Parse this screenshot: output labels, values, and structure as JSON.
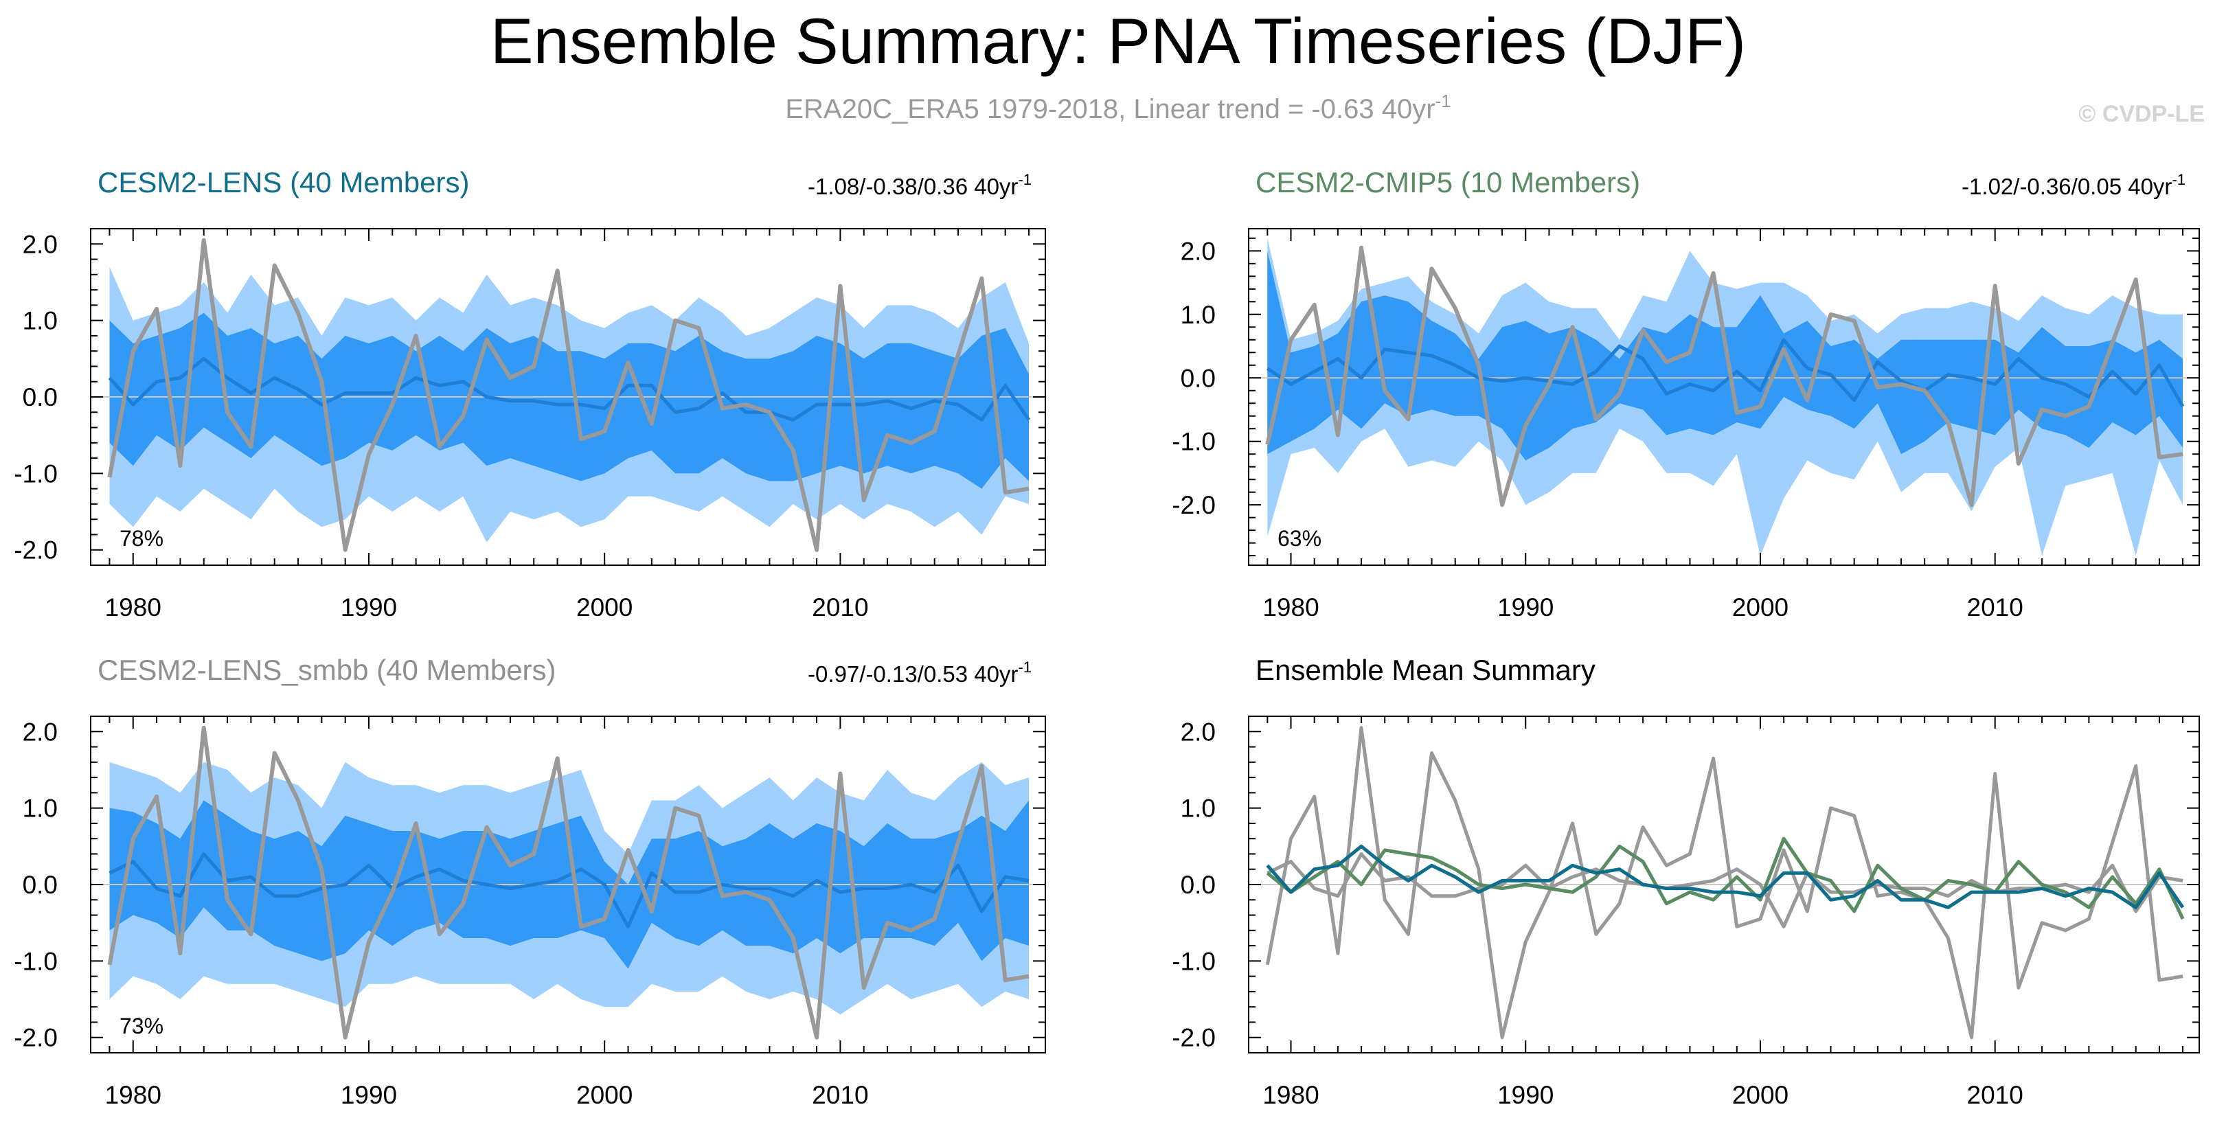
{
  "header": {
    "title": "Ensemble Summary: PNA Timeseries (DJF)",
    "subtitle": "ERA20C_ERA5 1979-2018, Linear trend = -0.63 40yr",
    "subtitle_sup": "-1",
    "watermark": "© CVDP-LE"
  },
  "colors": {
    "band_outer": "#9fd0ff",
    "band_inner": "#3399f6",
    "ens_mean_line": "#1f7fd6",
    "obs_line": "#999999",
    "lens_title": "#0f6e8c",
    "cmip5_title": "#5a8c63",
    "smbb_title": "#8f8f8f",
    "summary_title": "#000000",
    "zero_line": "#c8c8c8"
  },
  "chart_data": [
    {
      "type": "area",
      "title": "CESM2-LENS (40 Members)",
      "trend_text": "-1.08/-0.38/0.36 40yr",
      "trend_sup": "-1",
      "percent": "78%",
      "ylim": [
        -2.2,
        2.2
      ],
      "yticks": [
        "2.0",
        "1.0",
        "0.0",
        "-1.0",
        "-2.0"
      ],
      "xticks": [
        "1980",
        "1990",
        "2000",
        "2010"
      ],
      "x": [
        1979,
        1980,
        1981,
        1982,
        1983,
        1984,
        1985,
        1986,
        1987,
        1988,
        1989,
        1990,
        1991,
        1992,
        1993,
        1994,
        1995,
        1996,
        1997,
        1998,
        1999,
        2000,
        2001,
        2002,
        2003,
        2004,
        2005,
        2006,
        2007,
        2008,
        2009,
        2010,
        2011,
        2012,
        2013,
        2014,
        2015,
        2016,
        2017,
        2018
      ],
      "band_outer_upper": [
        1.7,
        1.0,
        1.1,
        1.2,
        1.5,
        1.1,
        1.6,
        1.2,
        1.3,
        0.8,
        1.3,
        1.2,
        1.3,
        1.0,
        1.3,
        1.1,
        1.6,
        1.2,
        1.3,
        1.2,
        1.0,
        0.9,
        1.1,
        1.2,
        1.0,
        1.3,
        1.1,
        0.8,
        0.9,
        1.1,
        1.3,
        1.2,
        0.9,
        1.2,
        1.2,
        1.1,
        0.9,
        1.3,
        1.5,
        0.7
      ],
      "band_inner_upper": [
        1.0,
        0.7,
        0.8,
        0.9,
        1.1,
        0.8,
        0.9,
        0.7,
        0.8,
        0.5,
        0.8,
        0.7,
        0.8,
        0.6,
        0.8,
        0.6,
        0.9,
        0.7,
        0.8,
        0.6,
        0.6,
        0.5,
        0.7,
        0.7,
        0.6,
        0.8,
        0.6,
        0.5,
        0.5,
        0.6,
        0.8,
        0.7,
        0.5,
        0.7,
        0.7,
        0.6,
        0.5,
        0.8,
        0.9,
        0.3
      ],
      "ens_mean": [
        0.25,
        -0.1,
        0.2,
        0.25,
        0.5,
        0.25,
        0.05,
        0.25,
        0.1,
        -0.1,
        0.05,
        0.05,
        0.05,
        0.25,
        0.15,
        0.2,
        0.0,
        -0.05,
        -0.05,
        -0.1,
        -0.1,
        -0.15,
        0.15,
        0.15,
        -0.2,
        -0.15,
        0.05,
        -0.2,
        -0.2,
        -0.3,
        -0.1,
        -0.1,
        -0.1,
        -0.05,
        -0.15,
        -0.05,
        -0.1,
        -0.3,
        0.15,
        -0.3
      ],
      "band_inner_lower": [
        -0.6,
        -0.9,
        -0.5,
        -0.7,
        -0.4,
        -0.6,
        -0.8,
        -0.5,
        -0.7,
        -0.9,
        -0.8,
        -0.6,
        -0.7,
        -0.5,
        -0.7,
        -0.6,
        -0.9,
        -0.8,
        -0.9,
        -1.0,
        -1.1,
        -1.0,
        -0.8,
        -0.7,
        -1.0,
        -1.0,
        -0.8,
        -1.0,
        -1.1,
        -1.1,
        -1.0,
        -0.9,
        -1.0,
        -0.9,
        -1.0,
        -0.9,
        -1.0,
        -1.2,
        -0.8,
        -1.1
      ],
      "band_outer_lower": [
        -1.4,
        -1.7,
        -1.3,
        -1.5,
        -1.2,
        -1.4,
        -1.6,
        -1.2,
        -1.5,
        -1.7,
        -1.6,
        -1.3,
        -1.5,
        -1.3,
        -1.5,
        -1.3,
        -1.9,
        -1.5,
        -1.6,
        -1.5,
        -1.7,
        -1.6,
        -1.3,
        -1.3,
        -1.4,
        -1.5,
        -1.3,
        -1.5,
        -1.7,
        -1.4,
        -1.6,
        -1.4,
        -1.6,
        -1.4,
        -1.5,
        -1.7,
        -1.5,
        -1.8,
        -1.3,
        -1.4
      ],
      "obs": [
        -1.05,
        0.6,
        1.15,
        -0.9,
        2.05,
        -0.2,
        -0.65,
        1.72,
        1.1,
        0.2,
        -2.0,
        -0.75,
        -0.1,
        0.8,
        -0.65,
        -0.25,
        0.75,
        0.25,
        0.4,
        1.65,
        -0.55,
        -0.45,
        0.45,
        -0.35,
        1.0,
        0.9,
        -0.15,
        -0.1,
        -0.2,
        -0.7,
        -2.0,
        1.45,
        -1.35,
        -0.5,
        -0.6,
        -0.45,
        0.55,
        1.55,
        -1.25,
        -1.2
      ],
      "obs_name": "ERA20C_ERA5",
      "ens_name": "CESM2-LENS"
    },
    {
      "type": "area",
      "title": "CESM2-CMIP5 (10 Members)",
      "trend_text": "-1.02/-0.36/0.05 40yr",
      "trend_sup": "-1",
      "percent": "63%",
      "ylim": [
        -2.95,
        2.35
      ],
      "yticks": [
        "2.0",
        "1.0",
        "0.0",
        "-1.0",
        "-2.0"
      ],
      "xticks": [
        "1980",
        "1990",
        "2000",
        "2010"
      ],
      "x": [
        1979,
        1980,
        1981,
        1982,
        1983,
        1984,
        1985,
        1986,
        1987,
        1988,
        1989,
        1990,
        1991,
        1992,
        1993,
        1994,
        1995,
        1996,
        1997,
        1998,
        1999,
        2000,
        2001,
        2002,
        2003,
        2004,
        2005,
        2006,
        2007,
        2008,
        2009,
        2010,
        2011,
        2012,
        2013,
        2014,
        2015,
        2016,
        2017,
        2018
      ],
      "band_outer_upper": [
        2.2,
        0.6,
        0.7,
        0.9,
        1.4,
        1.5,
        1.6,
        1.2,
        1.0,
        0.7,
        1.3,
        1.5,
        1.2,
        1.1,
        1.1,
        0.6,
        1.3,
        1.2,
        2.0,
        1.5,
        1.4,
        1.5,
        1.5,
        1.3,
        0.9,
        1.0,
        0.7,
        1.0,
        1.1,
        1.1,
        1.2,
        1.1,
        0.9,
        1.3,
        1.1,
        1.0,
        1.3,
        1.1,
        1.0,
        1.0
      ],
      "band_inner_upper": [
        2.0,
        0.4,
        0.5,
        0.7,
        1.2,
        1.3,
        1.2,
        0.9,
        0.7,
        0.3,
        0.8,
        0.9,
        0.7,
        0.8,
        0.6,
        0.3,
        0.8,
        0.7,
        1.0,
        0.8,
        0.8,
        1.3,
        0.7,
        0.9,
        0.5,
        0.6,
        0.3,
        0.6,
        0.6,
        0.6,
        0.6,
        0.6,
        0.4,
        0.8,
        0.5,
        0.5,
        0.6,
        0.4,
        0.6,
        0.3
      ],
      "ens_mean": [
        0.15,
        -0.1,
        0.1,
        0.3,
        0.0,
        0.45,
        0.4,
        0.35,
        0.2,
        0.0,
        -0.05,
        0.0,
        -0.05,
        -0.1,
        0.1,
        0.5,
        0.3,
        -0.25,
        -0.1,
        -0.2,
        0.1,
        -0.2,
        0.6,
        0.15,
        0.05,
        -0.35,
        0.25,
        -0.05,
        -0.2,
        0.05,
        0.0,
        -0.1,
        0.3,
        0.0,
        -0.1,
        -0.3,
        0.1,
        -0.25,
        0.2,
        -0.45
      ],
      "band_inner_lower": [
        -1.2,
        -1.0,
        -0.8,
        -0.5,
        -0.8,
        -0.4,
        -0.6,
        -0.5,
        -0.6,
        -0.6,
        -0.8,
        -1.3,
        -1.1,
        -0.8,
        -0.7,
        -0.4,
        -0.5,
        -0.9,
        -0.8,
        -0.9,
        -0.7,
        -0.8,
        -0.3,
        -0.5,
        -0.6,
        -0.8,
        -0.4,
        -1.2,
        -1.0,
        -0.7,
        -0.8,
        -0.9,
        -0.5,
        -0.8,
        -0.9,
        -1.1,
        -0.7,
        -0.9,
        -0.6,
        -1.1
      ],
      "band_outer_lower": [
        -2.5,
        -1.2,
        -1.1,
        -1.5,
        -1.0,
        -0.8,
        -1.4,
        -1.3,
        -1.4,
        -1.0,
        -1.3,
        -2.0,
        -1.8,
        -1.5,
        -1.5,
        -0.8,
        -1.0,
        -1.5,
        -1.5,
        -1.7,
        -1.2,
        -2.8,
        -1.9,
        -1.3,
        -1.5,
        -1.6,
        -1.0,
        -1.8,
        -1.5,
        -1.5,
        -2.1,
        -1.4,
        -1.1,
        -2.8,
        -1.7,
        -1.6,
        -1.5,
        -2.8,
        -1.3,
        -2.0
      ],
      "obs": [
        -1.05,
        0.6,
        1.15,
        -0.9,
        2.05,
        -0.2,
        -0.65,
        1.72,
        1.1,
        0.2,
        -2.0,
        -0.75,
        -0.1,
        0.8,
        -0.65,
        -0.25,
        0.75,
        0.25,
        0.4,
        1.65,
        -0.55,
        -0.45,
        0.45,
        -0.35,
        1.0,
        0.9,
        -0.15,
        -0.1,
        -0.2,
        -0.7,
        -2.0,
        1.45,
        -1.35,
        -0.5,
        -0.6,
        -0.45,
        0.55,
        1.55,
        -1.25,
        -1.2
      ],
      "obs_name": "ERA20C_ERA5",
      "ens_name": "CESM2-CMIP5"
    },
    {
      "type": "area",
      "title": "CESM2-LENS_smbb (40 Members)",
      "trend_text": "-0.97/-0.13/0.53 40yr",
      "trend_sup": "-1",
      "percent": "73%",
      "ylim": [
        -2.2,
        2.2
      ],
      "yticks": [
        "2.0",
        "1.0",
        "0.0",
        "-1.0",
        "-2.0"
      ],
      "xticks": [
        "1980",
        "1990",
        "2000",
        "2010"
      ],
      "x": [
        1979,
        1980,
        1981,
        1982,
        1983,
        1984,
        1985,
        1986,
        1987,
        1988,
        1989,
        1990,
        1991,
        1992,
        1993,
        1994,
        1995,
        1996,
        1997,
        1998,
        1999,
        2000,
        2001,
        2002,
        2003,
        2004,
        2005,
        2006,
        2007,
        2008,
        2009,
        2010,
        2011,
        2012,
        2013,
        2014,
        2015,
        2016,
        2017,
        2018
      ],
      "band_outer_upper": [
        1.6,
        1.5,
        1.4,
        1.2,
        1.6,
        1.5,
        1.2,
        1.4,
        1.3,
        1.0,
        1.6,
        1.4,
        1.3,
        1.3,
        1.2,
        1.3,
        1.3,
        1.2,
        1.3,
        1.4,
        1.5,
        0.7,
        0.4,
        1.1,
        1.1,
        1.3,
        1.0,
        1.2,
        1.4,
        1.1,
        1.4,
        1.2,
        1.1,
        1.5,
        1.2,
        1.1,
        1.4,
        1.6,
        1.3,
        1.4
      ],
      "band_inner_upper": [
        1.0,
        0.95,
        0.8,
        0.6,
        1.1,
        0.9,
        0.7,
        0.6,
        0.7,
        0.5,
        0.9,
        0.8,
        0.7,
        0.7,
        0.6,
        0.7,
        0.7,
        0.6,
        0.7,
        0.8,
        0.9,
        0.3,
        0.0,
        0.6,
        0.6,
        0.7,
        0.5,
        0.6,
        0.8,
        0.6,
        0.8,
        0.7,
        0.5,
        0.8,
        0.6,
        0.6,
        0.7,
        0.9,
        0.7,
        1.1
      ],
      "ens_mean": [
        0.15,
        0.3,
        -0.05,
        -0.15,
        0.4,
        0.05,
        0.1,
        -0.15,
        -0.15,
        -0.05,
        0.0,
        0.25,
        -0.05,
        0.1,
        0.2,
        0.05,
        0.0,
        -0.05,
        0.0,
        0.05,
        0.2,
        0.0,
        -0.55,
        0.15,
        -0.1,
        -0.1,
        0.0,
        -0.05,
        -0.05,
        -0.15,
        0.05,
        -0.1,
        -0.05,
        -0.05,
        0.0,
        -0.1,
        0.25,
        -0.35,
        0.1,
        0.05
      ],
      "band_inner_lower": [
        -0.6,
        -0.4,
        -0.5,
        -0.7,
        -0.3,
        -0.6,
        -0.6,
        -0.8,
        -0.9,
        -1.0,
        -0.9,
        -0.6,
        -0.8,
        -0.6,
        -0.5,
        -0.7,
        -0.7,
        -0.8,
        -0.7,
        -0.7,
        -0.6,
        -0.7,
        -1.1,
        -0.5,
        -0.7,
        -0.8,
        -0.6,
        -0.8,
        -0.8,
        -0.9,
        -0.7,
        -0.9,
        -0.7,
        -0.7,
        -0.7,
        -0.8,
        -0.5,
        -1.0,
        -0.7,
        -0.8
      ],
      "band_outer_lower": [
        -1.5,
        -1.2,
        -1.3,
        -1.5,
        -1.2,
        -1.3,
        -1.3,
        -1.3,
        -1.4,
        -1.5,
        -1.6,
        -1.3,
        -1.3,
        -1.2,
        -1.3,
        -1.3,
        -1.3,
        -1.3,
        -1.5,
        -1.3,
        -1.5,
        -1.6,
        -1.6,
        -1.3,
        -1.4,
        -1.4,
        -1.2,
        -1.4,
        -1.5,
        -1.4,
        -1.5,
        -1.7,
        -1.5,
        -1.3,
        -1.5,
        -1.4,
        -1.3,
        -1.6,
        -1.4,
        -1.5
      ],
      "obs": [
        -1.05,
        0.6,
        1.15,
        -0.9,
        2.05,
        -0.2,
        -0.65,
        1.72,
        1.1,
        0.2,
        -2.0,
        -0.75,
        -0.1,
        0.8,
        -0.65,
        -0.25,
        0.75,
        0.25,
        0.4,
        1.65,
        -0.55,
        -0.45,
        0.45,
        -0.35,
        1.0,
        0.9,
        -0.15,
        -0.1,
        -0.2,
        -0.7,
        -2.0,
        1.45,
        -1.35,
        -0.5,
        -0.6,
        -0.45,
        0.55,
        1.55,
        -1.25,
        -1.2
      ],
      "obs_name": "ERA20C_ERA5",
      "ens_name": "CESM2-LENS_smbb"
    },
    {
      "type": "line",
      "title": "Ensemble Mean Summary",
      "ylim": [
        -2.2,
        2.2
      ],
      "yticks": [
        "2.0",
        "1.0",
        "0.0",
        "-1.0",
        "-2.0"
      ],
      "xticks": [
        "1980",
        "1990",
        "2000",
        "2010"
      ],
      "x": [
        1979,
        1980,
        1981,
        1982,
        1983,
        1984,
        1985,
        1986,
        1987,
        1988,
        1989,
        1990,
        1991,
        1992,
        1993,
        1994,
        1995,
        1996,
        1997,
        1998,
        1999,
        2000,
        2001,
        2002,
        2003,
        2004,
        2005,
        2006,
        2007,
        2008,
        2009,
        2010,
        2011,
        2012,
        2013,
        2014,
        2015,
        2016,
        2017,
        2018
      ],
      "series": [
        {
          "color": "#999999",
          "values": [
            -1.05,
            0.6,
            1.15,
            -0.9,
            2.05,
            -0.2,
            -0.65,
            1.72,
            1.1,
            0.2,
            -2.0,
            -0.75,
            -0.1,
            0.8,
            -0.65,
            -0.25,
            0.75,
            0.25,
            0.4,
            1.65,
            -0.55,
            -0.45,
            0.45,
            -0.35,
            1.0,
            0.9,
            -0.15,
            -0.1,
            -0.2,
            -0.7,
            -2.0,
            1.45,
            -1.35,
            -0.5,
            -0.6,
            -0.45,
            0.55,
            1.55,
            -1.25,
            -1.2
          ]
        },
        {
          "color": "#999999",
          "values": [
            0.15,
            0.3,
            -0.05,
            -0.15,
            0.4,
            0.05,
            0.1,
            -0.15,
            -0.15,
            -0.05,
            0.0,
            0.25,
            -0.05,
            0.1,
            0.2,
            0.05,
            0.0,
            -0.05,
            0.0,
            0.05,
            0.2,
            0.0,
            -0.55,
            0.15,
            -0.1,
            -0.1,
            0.0,
            -0.05,
            -0.05,
            -0.15,
            0.05,
            -0.1,
            -0.05,
            -0.05,
            0.0,
            -0.1,
            0.25,
            -0.35,
            0.1,
            0.05
          ]
        },
        {
          "color": "#5a8c63",
          "values": [
            0.15,
            -0.1,
            0.1,
            0.3,
            0.0,
            0.45,
            0.4,
            0.35,
            0.2,
            0.0,
            -0.05,
            0.0,
            -0.05,
            -0.1,
            0.1,
            0.5,
            0.3,
            -0.25,
            -0.1,
            -0.2,
            0.1,
            -0.2,
            0.6,
            0.15,
            0.05,
            -0.35,
            0.25,
            -0.05,
            -0.2,
            0.05,
            0.0,
            -0.1,
            0.3,
            0.0,
            -0.1,
            -0.3,
            0.1,
            -0.25,
            0.2,
            -0.45
          ]
        },
        {
          "color": "#0f6e8c",
          "values": [
            0.25,
            -0.1,
            0.2,
            0.25,
            0.5,
            0.25,
            0.05,
            0.25,
            0.1,
            -0.1,
            0.05,
            0.05,
            0.05,
            0.25,
            0.15,
            0.2,
            0.0,
            -0.05,
            -0.05,
            -0.1,
            -0.1,
            -0.15,
            0.15,
            0.15,
            -0.2,
            -0.15,
            0.05,
            -0.2,
            -0.2,
            -0.3,
            -0.1,
            -0.1,
            -0.1,
            -0.05,
            -0.15,
            -0.05,
            -0.1,
            -0.3,
            0.15,
            -0.3
          ]
        }
      ]
    }
  ]
}
